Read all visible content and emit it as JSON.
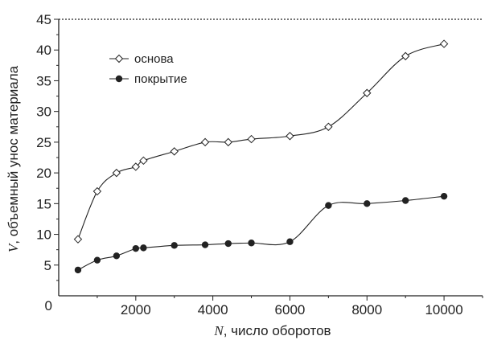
{
  "chart_data": {
    "type": "line",
    "xlabel": {
      "variable": "N",
      "text": ", число оборотов"
    },
    "ylabel": {
      "variable": "V",
      "text": ", объемный унос материала"
    },
    "xlim": [
      0,
      11000
    ],
    "ylim": [
      0,
      45
    ],
    "x_ticks": [
      2000,
      4000,
      6000,
      8000,
      10000
    ],
    "y_ticks": [
      5,
      10,
      15,
      20,
      25,
      30,
      35,
      40,
      45
    ],
    "origin_label": "0",
    "grid": false,
    "reference_line": {
      "y": 45,
      "style": "dotted"
    },
    "legend_position": "top-left",
    "series": [
      {
        "name": "основа",
        "marker": "open-diamond",
        "color": "#222222",
        "x": [
          500,
          1000,
          1500,
          2000,
          2200,
          3000,
          3800,
          4400,
          5000,
          6000,
          7000,
          8000,
          9000,
          10000
        ],
        "y": [
          9.2,
          17.0,
          20.0,
          21.0,
          22.0,
          23.5,
          25.0,
          25.0,
          25.5,
          26.0,
          27.5,
          33.0,
          39.0,
          41.0
        ]
      },
      {
        "name": "покрытие",
        "marker": "filled-circle",
        "color": "#222222",
        "x": [
          500,
          1000,
          1500,
          2000,
          2200,
          3000,
          3800,
          4400,
          5000,
          6000,
          7000,
          8000,
          9000,
          10000
        ],
        "y": [
          4.2,
          5.8,
          6.5,
          7.7,
          7.8,
          8.2,
          8.3,
          8.5,
          8.6,
          8.8,
          14.7,
          15.0,
          15.5,
          16.2
        ]
      }
    ]
  }
}
